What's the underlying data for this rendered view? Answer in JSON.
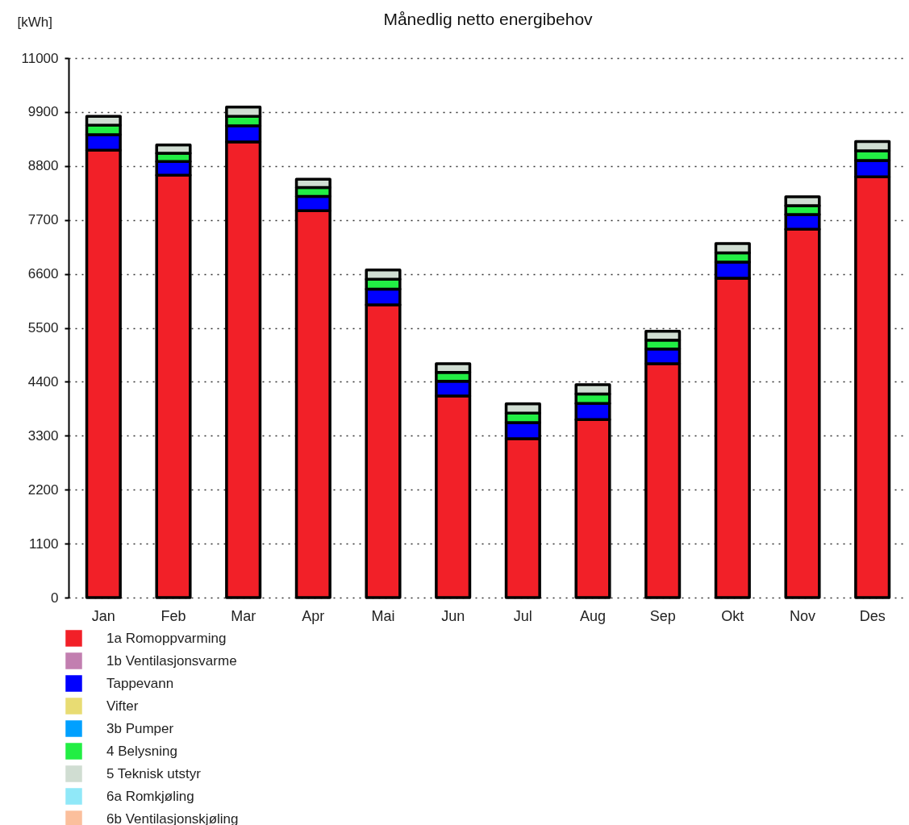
{
  "chart_data": {
    "type": "bar",
    "title": "Månedlig netto energibehov",
    "ylabel": "[kWh]",
    "stacked": true,
    "categories": [
      "Jan",
      "Feb",
      "Mar",
      "Apr",
      "Mai",
      "Jun",
      "Jul",
      "Aug",
      "Sep",
      "Okt",
      "Nov",
      "Des"
    ],
    "series": [
      {
        "name": "1a Romoppvarming",
        "color": "#f22028",
        "values": [
          9120,
          8610,
          9290,
          7890,
          5970,
          4110,
          3240,
          3630,
          4770,
          6510,
          7510,
          8580
        ]
      },
      {
        "name": "1b Ventilasjonsvarme",
        "color": "#c27fb0",
        "values": [
          0,
          0,
          0,
          0,
          0,
          0,
          0,
          0,
          0,
          0,
          0,
          0
        ]
      },
      {
        "name": "Tappevann",
        "color": "#0000ff",
        "values": [
          320,
          280,
          330,
          290,
          320,
          300,
          330,
          330,
          300,
          330,
          300,
          330
        ]
      },
      {
        "name": "Vifter",
        "color": "#e8dc73",
        "values": [
          0,
          0,
          0,
          0,
          0,
          0,
          0,
          0,
          0,
          0,
          0,
          0
        ]
      },
      {
        "name": "3b Pumper",
        "color": "#00a0ff",
        "values": [
          0,
          0,
          0,
          0,
          0,
          0,
          0,
          0,
          0,
          0,
          0,
          0
        ]
      },
      {
        "name": "4   Belysning",
        "color": "#22ee44",
        "values": [
          190,
          170,
          190,
          180,
          200,
          180,
          190,
          190,
          180,
          190,
          180,
          200
        ]
      },
      {
        "name": "5   Teknisk utstyr",
        "color": "#d0ddd2",
        "values": [
          180,
          170,
          190,
          170,
          190,
          180,
          190,
          190,
          180,
          190,
          180,
          190
        ]
      },
      {
        "name": "6a Romkjøling",
        "color": "#90e8f8",
        "values": [
          0,
          0,
          0,
          0,
          0,
          0,
          0,
          0,
          0,
          0,
          0,
          0
        ]
      },
      {
        "name": "6b Ventilasjonskjøling",
        "color": "#fbbf9c",
        "values": [
          0,
          0,
          0,
          0,
          0,
          0,
          0,
          0,
          0,
          0,
          0,
          0
        ]
      }
    ],
    "ylim": [
      0,
      11000
    ],
    "yticks": [
      0,
      1100,
      2200,
      3300,
      4400,
      5500,
      6600,
      7700,
      8800,
      9900,
      11000
    ],
    "grid": "y",
    "legend": "bottom left"
  }
}
